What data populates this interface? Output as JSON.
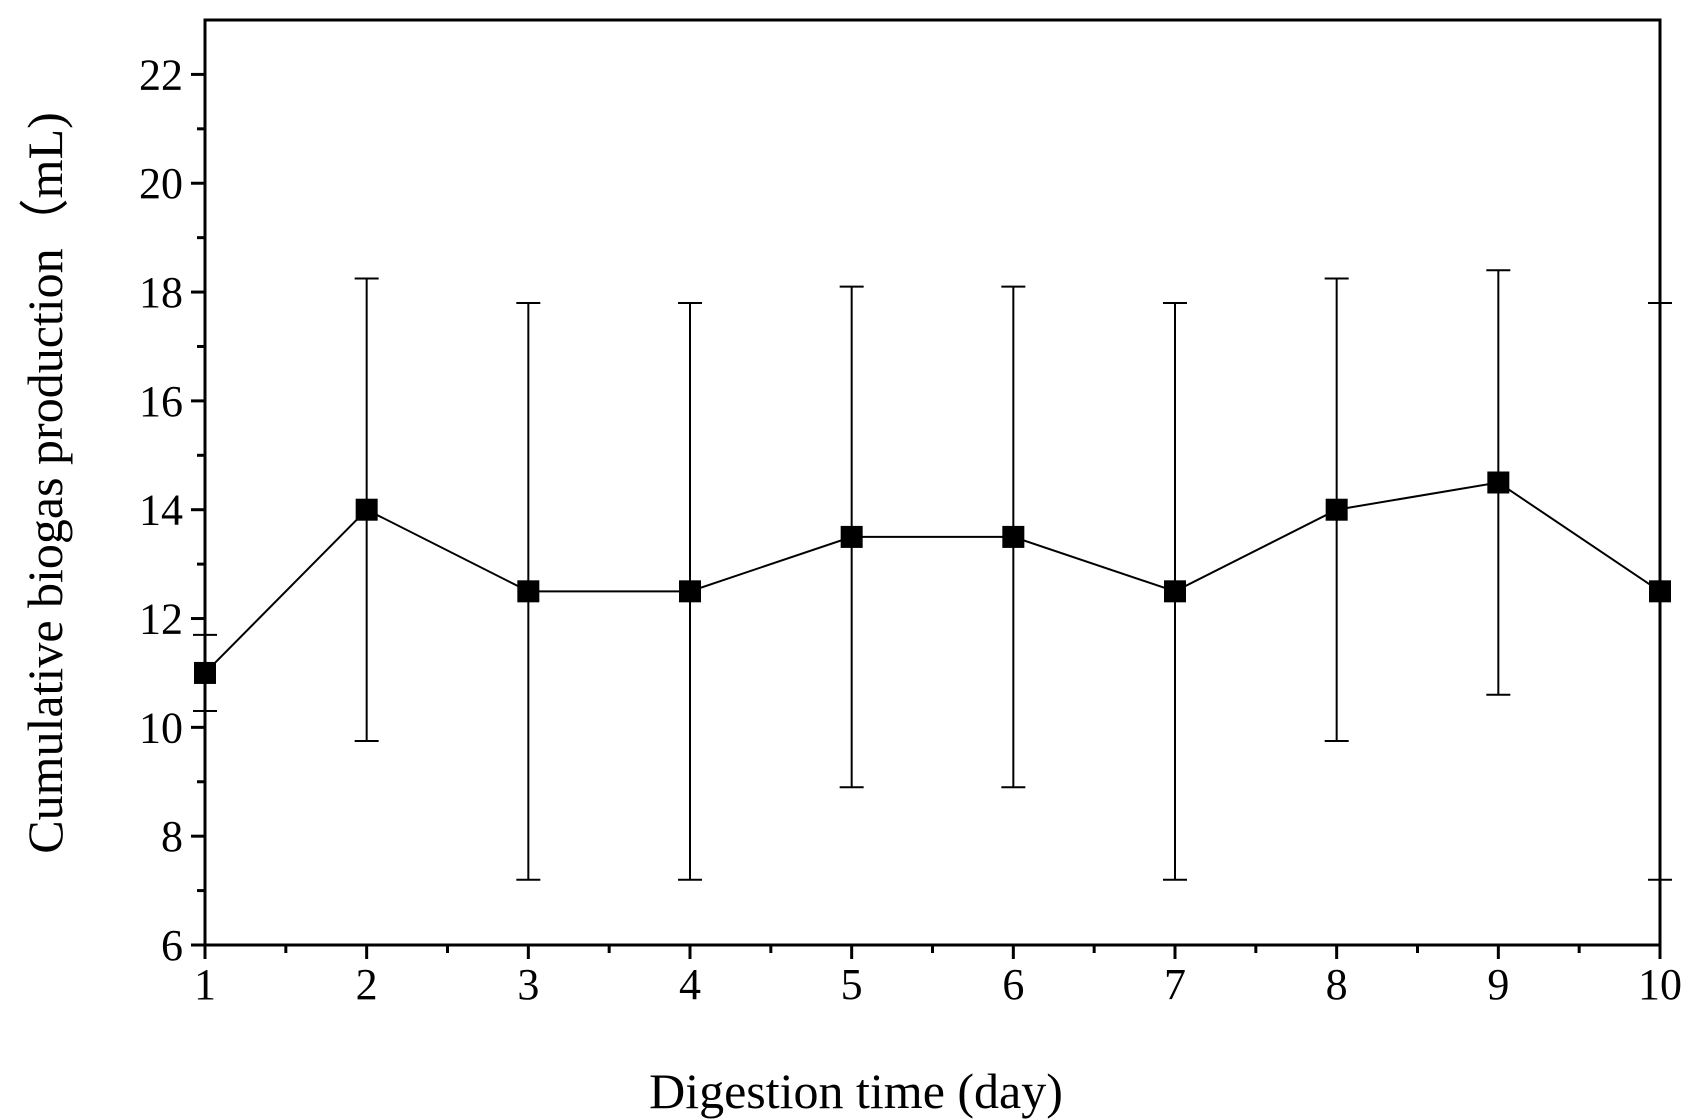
{
  "chart_data": {
    "type": "line",
    "title": "",
    "xlabel": "Digestion time (day)",
    "ylabel": "Cumulative biogas production（mL)",
    "xlim": [
      1,
      10
    ],
    "ylim": [
      6,
      23
    ],
    "x_ticks": [
      1,
      2,
      3,
      4,
      5,
      6,
      7,
      8,
      9,
      10
    ],
    "y_ticks": [
      6,
      8,
      10,
      12,
      14,
      16,
      18,
      20,
      22
    ],
    "series": [
      {
        "name": "Cumulative biogas production",
        "marker": "square",
        "x": [
          1,
          2,
          3,
          4,
          5,
          6,
          7,
          8,
          9,
          10
        ],
        "values": [
          11,
          14,
          12.5,
          12.5,
          13.5,
          13.5,
          12.5,
          14,
          14.5,
          12.5
        ],
        "error": [
          0.7,
          4.25,
          5.3,
          5.3,
          4.6,
          4.6,
          5.3,
          4.25,
          3.9,
          5.3
        ]
      }
    ],
    "colors": {
      "line": "#000000",
      "marker": "#000000",
      "axis": "#000000"
    }
  }
}
